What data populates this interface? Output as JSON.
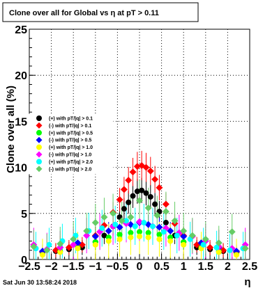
{
  "chart_data": {
    "type": "scatter",
    "title": "Clone  over all for Global vs  η at pT > 0.11",
    "xlabel": "η",
    "ylabel": "Clone  over all (%)",
    "xlim": [
      -2.5,
      2.5
    ],
    "ylim": [
      0,
      25
    ],
    "x_ticks": [
      "−2.5",
      "−2",
      "−1.5",
      "−1",
      "−0.5",
      "0",
      "0.5",
      "1",
      "1.5",
      "2",
      "2.5"
    ],
    "y_ticks": [
      "0",
      "5",
      "10",
      "15",
      "20",
      "25"
    ],
    "grid": true,
    "legend_position": "middle-left",
    "timestamp": "Sat Jun 30 13:58:24 2018",
    "series": [
      {
        "name": "(+) with pT/|q| > 0.1",
        "color": "#000000",
        "x": [
          -2.2,
          -1.9,
          -1.6,
          -1.3,
          -1.0,
          -0.8,
          -0.6,
          -0.45,
          -0.35,
          -0.25,
          -0.15,
          -0.05,
          0.05,
          0.15,
          0.25,
          0.35,
          0.45,
          0.6,
          0.8,
          1.0,
          1.3,
          1.6,
          1.9,
          2.2
        ],
        "y": [
          0.7,
          0.9,
          1.1,
          1.3,
          1.9,
          2.6,
          3.6,
          4.6,
          5.5,
          6.2,
          6.9,
          7.4,
          7.5,
          7.2,
          6.8,
          6.0,
          5.2,
          4.0,
          2.6,
          1.9,
          1.3,
          1.1,
          0.9,
          0.7
        ]
      },
      {
        "name": "(-) with pT/|q| > 0.1",
        "color": "#ff0000",
        "x": [
          -2.2,
          -1.9,
          -1.6,
          -1.3,
          -1.0,
          -0.8,
          -0.6,
          -0.45,
          -0.35,
          -0.25,
          -0.15,
          -0.05,
          0.05,
          0.15,
          0.25,
          0.35,
          0.45,
          0.6,
          0.8,
          1.0,
          1.3,
          1.6,
          1.9,
          2.2
        ],
        "y": [
          0.8,
          1.0,
          1.3,
          1.6,
          2.6,
          3.7,
          5.1,
          6.5,
          7.6,
          8.6,
          9.5,
          10.1,
          10.2,
          10.0,
          9.6,
          8.7,
          7.8,
          6.0,
          3.9,
          2.6,
          1.6,
          1.3,
          1.0,
          0.8
        ]
      },
      {
        "name": "(+) with pT/|q| > 0.5",
        "color": "#00ff00",
        "x": [
          -2.2,
          -1.8,
          -1.4,
          -1.0,
          -0.7,
          -0.45,
          -0.2,
          0.0,
          0.2,
          0.45,
          0.7,
          1.0,
          1.4,
          1.8,
          2.2
        ],
        "y": [
          0.6,
          0.9,
          1.3,
          1.9,
          2.4,
          2.7,
          2.9,
          3.0,
          2.9,
          2.7,
          2.4,
          1.9,
          1.3,
          0.9,
          0.6
        ]
      },
      {
        "name": "(-) with pT/|q| > 0.5",
        "color": "#0000ff",
        "x": [
          -2.2,
          -1.8,
          -1.4,
          -1.0,
          -0.7,
          -0.45,
          -0.2,
          0.0,
          0.2,
          0.45,
          0.7,
          1.0,
          1.4,
          1.8,
          2.2
        ],
        "y": [
          0.9,
          1.3,
          1.8,
          2.5,
          3.1,
          3.5,
          3.8,
          4.0,
          3.8,
          3.5,
          3.1,
          2.5,
          1.8,
          1.3,
          0.9
        ]
      },
      {
        "name": "(+) with pT/|q| > 1.0",
        "color": "#ffff00",
        "x": [
          -2.2,
          -1.8,
          -1.4,
          -1.0,
          -0.7,
          -0.45,
          -0.2,
          0.0,
          0.2,
          0.45,
          0.7,
          1.0,
          1.4,
          1.8,
          2.2
        ],
        "y": [
          0.5,
          0.8,
          1.2,
          1.6,
          2.0,
          2.2,
          2.4,
          2.5,
          2.4,
          2.2,
          2.0,
          1.6,
          1.2,
          0.8,
          0.5
        ]
      },
      {
        "name": "(-) with pT/|q| > 1.0",
        "color": "#ff00ff",
        "x": [
          -2.4,
          -2.1,
          -1.8,
          -1.5,
          -1.2,
          -0.9,
          -0.6,
          -0.3,
          0.0,
          0.3,
          0.6,
          0.9,
          1.2,
          1.5,
          1.8,
          2.1,
          2.4
        ],
        "y": [
          1.6,
          1.1,
          1.3,
          1.6,
          2.6,
          3.0,
          3.6,
          3.9,
          4.1,
          3.6,
          3.4,
          2.9,
          2.5,
          2.0,
          1.4,
          1.2,
          1.6
        ]
      },
      {
        "name": "(+) with pT/|q| > 2.0",
        "color": "#00ffff",
        "x": [
          -2.35,
          -2.05,
          -1.75,
          -1.45,
          -1.15,
          -0.85,
          -0.55,
          -0.3,
          -0.1,
          0.1,
          0.3,
          0.55,
          0.85,
          1.15,
          1.45,
          1.75,
          2.05,
          2.35
        ],
        "y": [
          1.2,
          1.6,
          2.0,
          2.6,
          3.1,
          3.4,
          3.8,
          4.2,
          3.6,
          4.0,
          3.6,
          3.0,
          2.6,
          2.2,
          1.6,
          1.3,
          1.0,
          1.2
        ]
      },
      {
        "name": "(-) with pT/|q| > 2.0",
        "color": "#66cc66",
        "x": [
          -2.4,
          -2.1,
          -1.8,
          -1.5,
          -1.2,
          -1.0,
          -0.8,
          -0.6,
          -0.4,
          -0.2,
          0.0,
          0.2,
          0.4,
          0.6,
          0.8,
          1.0,
          1.2,
          1.5,
          1.8,
          2.1,
          2.4
        ],
        "y": [
          1.4,
          1.0,
          1.7,
          2.2,
          3.1,
          4.0,
          4.6,
          5.0,
          4.2,
          4.6,
          6.4,
          5.6,
          4.8,
          5.2,
          4.2,
          3.1,
          2.6,
          2.2,
          1.8,
          3.0,
          1.2
        ]
      }
    ]
  }
}
